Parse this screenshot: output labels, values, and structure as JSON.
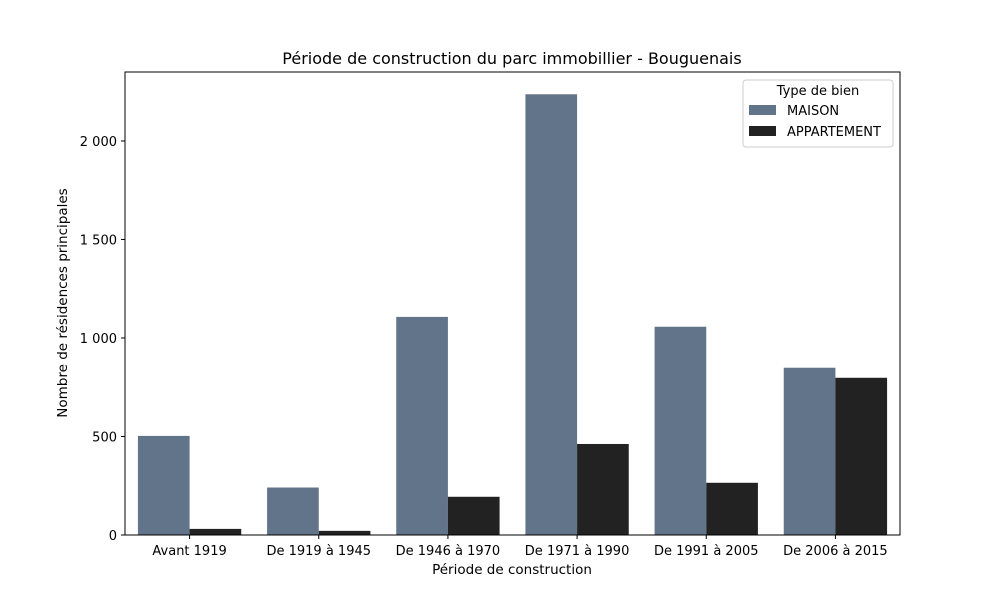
{
  "chart_data": {
    "type": "bar",
    "title": "Période de construction du parc immobillier - Bouguenais",
    "xlabel": "Période de construction",
    "ylabel": "Nombre de résidences principales",
    "categories": [
      "Avant 1919",
      "De 1919 à 1945",
      "De 1946 à 1970",
      "De 1971 à 1990",
      "De 1991 à 2005",
      "De 2006 à 2015"
    ],
    "series": [
      {
        "name": "MAISON",
        "values": [
          503,
          241,
          1107,
          2237,
          1057,
          849
        ],
        "color": "#627489"
      },
      {
        "name": "APPARTEMENT",
        "values": [
          31,
          21,
          194,
          462,
          265,
          798
        ],
        "color": "#222222"
      }
    ],
    "ylim": [
      0,
      2350
    ],
    "yticks": [
      0,
      500,
      1000,
      1500,
      2000
    ],
    "ytick_labels": [
      "0",
      "500",
      "1 000",
      "1 500",
      "2 000"
    ],
    "legend": {
      "title": "Type de bien",
      "position": "top-right"
    },
    "grid": false
  }
}
